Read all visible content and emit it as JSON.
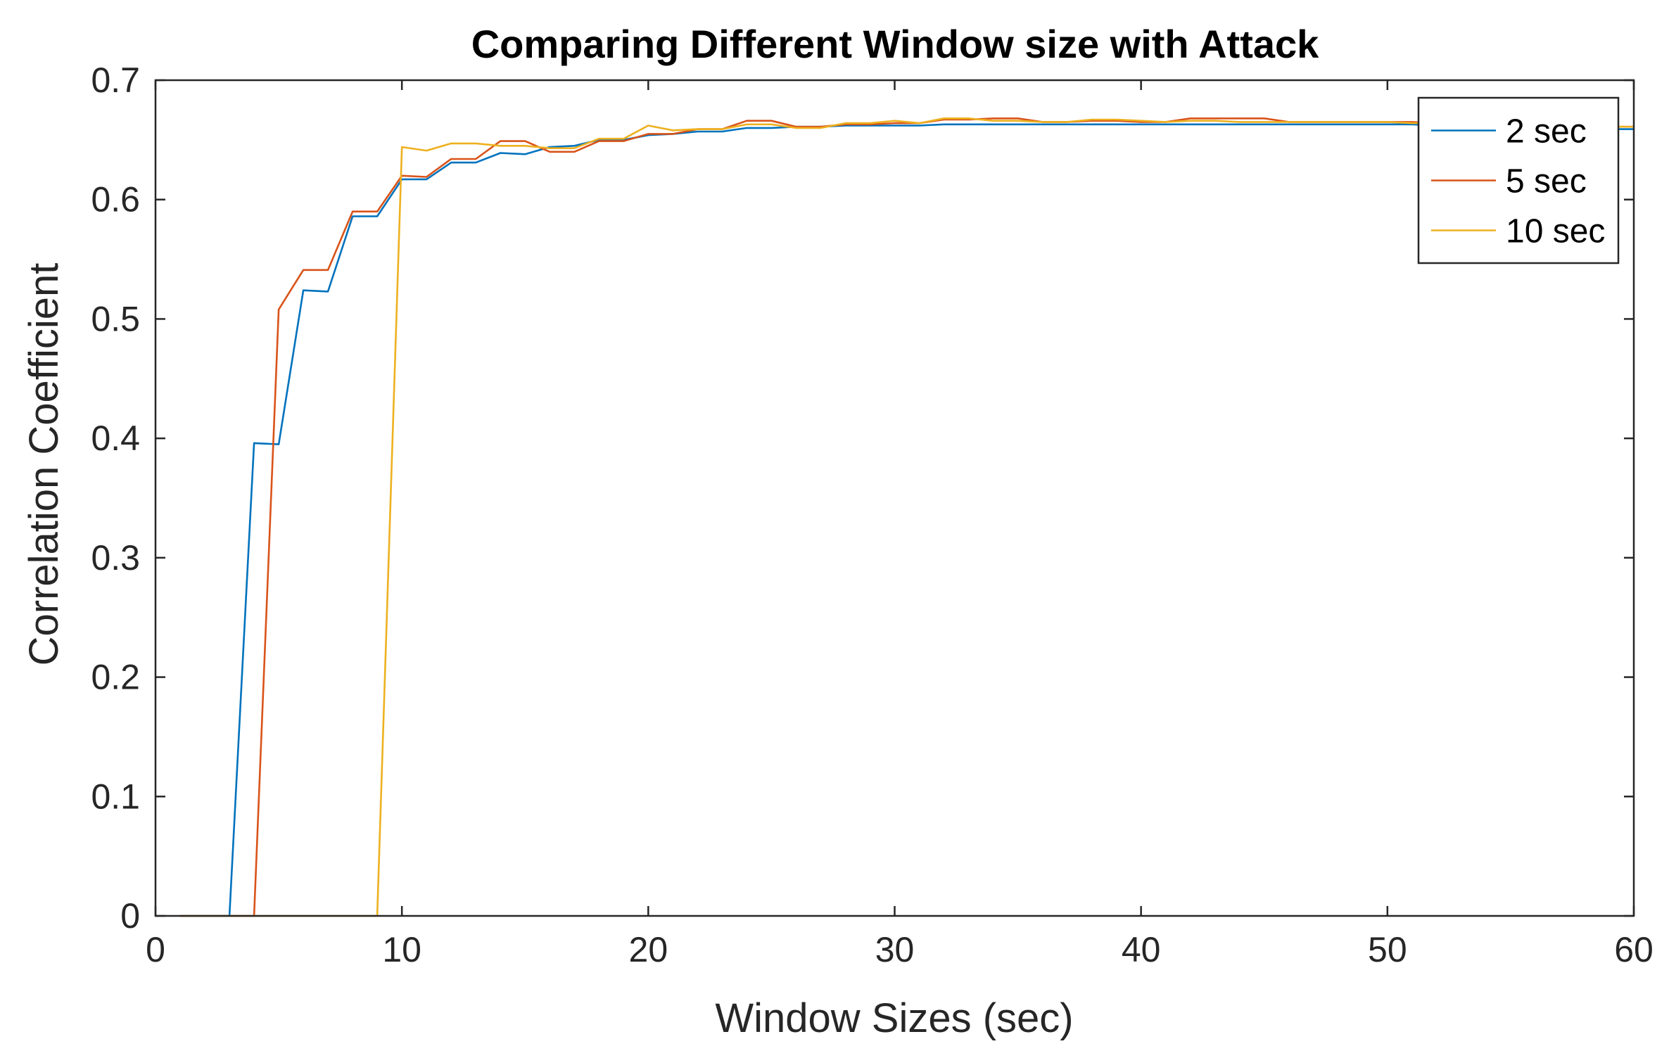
{
  "chart_data": {
    "type": "line",
    "title": "Comparing Different Window size with Attack",
    "xlabel": "Window Sizes (sec)",
    "ylabel": "Correlation Coefficient",
    "xlim": [
      0,
      60
    ],
    "ylim": [
      0,
      0.7
    ],
    "xticks": [
      0,
      10,
      20,
      30,
      40,
      50,
      60
    ],
    "yticks": [
      0,
      0.1,
      0.2,
      0.3,
      0.4,
      0.5,
      0.6,
      0.7
    ],
    "xtick_labels": [
      "0",
      "10",
      "20",
      "30",
      "40",
      "50",
      "60"
    ],
    "ytick_labels": [
      "0",
      "0.1",
      "0.2",
      "0.3",
      "0.4",
      "0.5",
      "0.6",
      "0.7"
    ],
    "grid": false,
    "legend_position": "top-right",
    "series": [
      {
        "name": "2 sec",
        "color": "#0072BD",
        "x": [
          1,
          2,
          3,
          4,
          5,
          6,
          7,
          8,
          9,
          10,
          11,
          12,
          13,
          14,
          15,
          16,
          17,
          18,
          19,
          20,
          21,
          22,
          23,
          24,
          25,
          26,
          27,
          28,
          29,
          30,
          31,
          32,
          33,
          34,
          35,
          36,
          37,
          38,
          39,
          40,
          41,
          42,
          43,
          44,
          45,
          46,
          47,
          48,
          49,
          50,
          51,
          52,
          53,
          54,
          55,
          56,
          57,
          58,
          59,
          60
        ],
        "values": [
          0,
          0,
          0,
          0.396,
          0.395,
          0.524,
          0.523,
          0.586,
          0.586,
          0.617,
          0.617,
          0.631,
          0.631,
          0.639,
          0.638,
          0.644,
          0.645,
          0.65,
          0.65,
          0.654,
          0.655,
          0.657,
          0.657,
          0.66,
          0.66,
          0.661,
          0.661,
          0.662,
          0.662,
          0.662,
          0.662,
          0.663,
          0.663,
          0.663,
          0.663,
          0.663,
          0.663,
          0.663,
          0.663,
          0.663,
          0.663,
          0.663,
          0.663,
          0.663,
          0.663,
          0.663,
          0.663,
          0.663,
          0.663,
          0.663,
          0.663,
          0.662,
          0.662,
          0.662,
          0.661,
          0.661,
          0.66,
          0.66,
          0.659,
          0.659
        ]
      },
      {
        "name": "5 sec",
        "color": "#D95319",
        "x": [
          1,
          2,
          3,
          4,
          5,
          6,
          7,
          8,
          9,
          10,
          11,
          12,
          13,
          14,
          15,
          16,
          17,
          18,
          19,
          20,
          21,
          22,
          23,
          24,
          25,
          26,
          27,
          28,
          29,
          30,
          31,
          32,
          33,
          34,
          35,
          36,
          37,
          38,
          39,
          40,
          41,
          42,
          43,
          44,
          45,
          46,
          47,
          48,
          49,
          50,
          51,
          52,
          53,
          54,
          55,
          56,
          57,
          58,
          59,
          60
        ],
        "values": [
          0,
          0,
          0,
          0,
          0.508,
          0.541,
          0.541,
          0.59,
          0.59,
          0.62,
          0.619,
          0.634,
          0.634,
          0.649,
          0.649,
          0.64,
          0.64,
          0.649,
          0.649,
          0.655,
          0.655,
          0.659,
          0.659,
          0.666,
          0.666,
          0.661,
          0.661,
          0.663,
          0.663,
          0.664,
          0.664,
          0.667,
          0.667,
          0.668,
          0.668,
          0.665,
          0.665,
          0.666,
          0.666,
          0.665,
          0.665,
          0.668,
          0.668,
          0.668,
          0.668,
          0.665,
          0.665,
          0.665,
          0.665,
          0.665,
          0.665,
          0.664,
          0.664,
          0.664,
          0.663,
          0.663,
          0.662,
          0.662,
          0.661,
          0.661
        ]
      },
      {
        "name": "10 sec",
        "color": "#EDB120",
        "x": [
          1,
          2,
          3,
          4,
          5,
          6,
          7,
          8,
          9,
          10,
          11,
          12,
          13,
          14,
          15,
          16,
          17,
          18,
          19,
          20,
          21,
          22,
          23,
          24,
          25,
          26,
          27,
          28,
          29,
          30,
          31,
          32,
          33,
          34,
          35,
          36,
          37,
          38,
          39,
          40,
          41,
          42,
          43,
          44,
          45,
          46,
          47,
          48,
          49,
          50,
          51,
          52,
          53,
          54,
          55,
          56,
          57,
          58,
          59,
          60
        ],
        "values": [
          0,
          0,
          0,
          0,
          0,
          0,
          0,
          0,
          0,
          0.644,
          0.641,
          0.647,
          0.647,
          0.645,
          0.645,
          0.643,
          0.643,
          0.651,
          0.651,
          0.662,
          0.658,
          0.659,
          0.659,
          0.663,
          0.663,
          0.66,
          0.66,
          0.664,
          0.664,
          0.666,
          0.664,
          0.668,
          0.668,
          0.666,
          0.666,
          0.665,
          0.665,
          0.667,
          0.667,
          0.666,
          0.665,
          0.666,
          0.666,
          0.665,
          0.665,
          0.665,
          0.665,
          0.665,
          0.665,
          0.665,
          0.664,
          0.664,
          0.663,
          0.663,
          0.662,
          0.662,
          0.662,
          0.661,
          0.661,
          0.661
        ]
      }
    ]
  }
}
